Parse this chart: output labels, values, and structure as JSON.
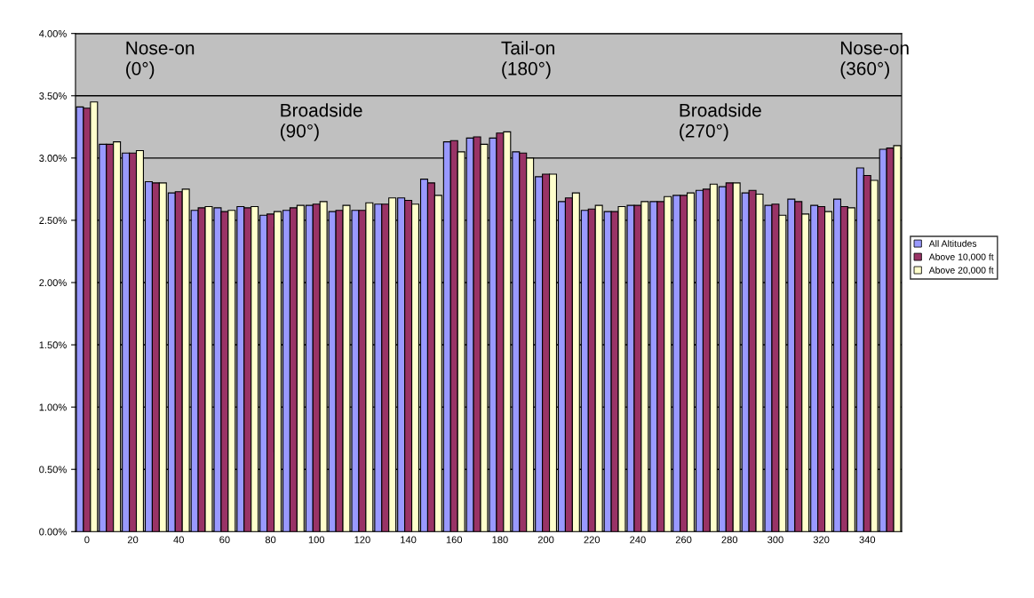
{
  "chart_data": {
    "type": "bar",
    "categories": [
      "0",
      null,
      "20",
      null,
      "40",
      null,
      "60",
      null,
      "80",
      null,
      "100",
      null,
      "120",
      null,
      "140",
      null,
      "160",
      null,
      "180",
      null,
      "200",
      null,
      "220",
      null,
      "240",
      null,
      "260",
      null,
      "280",
      null,
      "300",
      null,
      "320",
      null,
      "340",
      null
    ],
    "series": [
      {
        "name": "All Altitudes",
        "color": "#9999ff",
        "values": [
          3.41,
          3.11,
          3.04,
          2.81,
          2.72,
          2.58,
          2.6,
          2.61,
          2.54,
          2.58,
          2.62,
          2.57,
          2.58,
          2.63,
          2.68,
          2.83,
          3.13,
          3.16,
          3.16,
          3.05,
          2.85,
          2.65,
          2.58,
          2.57,
          2.62,
          2.65,
          2.7,
          2.74,
          2.77,
          2.72,
          2.62,
          2.67,
          2.62,
          2.67,
          2.92,
          3.07
        ]
      },
      {
        "name": "Above 10,000 ft",
        "color": "#993366",
        "values": [
          3.4,
          3.11,
          3.04,
          2.8,
          2.73,
          2.6,
          2.57,
          2.6,
          2.55,
          2.6,
          2.63,
          2.58,
          2.58,
          2.63,
          2.66,
          2.8,
          3.14,
          3.17,
          3.2,
          3.04,
          2.87,
          2.68,
          2.59,
          2.57,
          2.62,
          2.65,
          2.7,
          2.75,
          2.8,
          2.74,
          2.63,
          2.65,
          2.61,
          2.61,
          2.86,
          3.08
        ]
      },
      {
        "name": "Above 20,000 ft",
        "color": "#ffffcc",
        "values": [
          3.45,
          3.13,
          3.06,
          2.8,
          2.75,
          2.61,
          2.58,
          2.61,
          2.57,
          2.62,
          2.65,
          2.62,
          2.64,
          2.68,
          2.63,
          2.7,
          3.05,
          3.11,
          3.21,
          3.0,
          2.87,
          2.72,
          2.62,
          2.61,
          2.65,
          2.69,
          2.72,
          2.79,
          2.8,
          2.71,
          2.54,
          2.55,
          2.57,
          2.6,
          2.82,
          3.1
        ]
      }
    ],
    "ylim": [
      0,
      4
    ],
    "yticks": [
      {
        "value": 0,
        "label": "0.00%"
      },
      {
        "value": 0.5,
        "label": "0.50%"
      },
      {
        "value": 1,
        "label": "1.00%"
      },
      {
        "value": 1.5,
        "label": "1.50%"
      },
      {
        "value": 2,
        "label": "2.00%"
      },
      {
        "value": 2.5,
        "label": "2.50%"
      },
      {
        "value": 3,
        "label": "3.00%"
      },
      {
        "value": 3.5,
        "label": "3.50%"
      },
      {
        "value": 4,
        "label": "4.00%"
      }
    ],
    "annotations": [
      "Nose-on\n(0°)",
      "Tail-on\n(180°)",
      "Nose-on\n(360°)",
      "Broadside\n(90°)",
      "Broadside\n(270°)"
    ],
    "grid": "y",
    "legend": "right"
  }
}
